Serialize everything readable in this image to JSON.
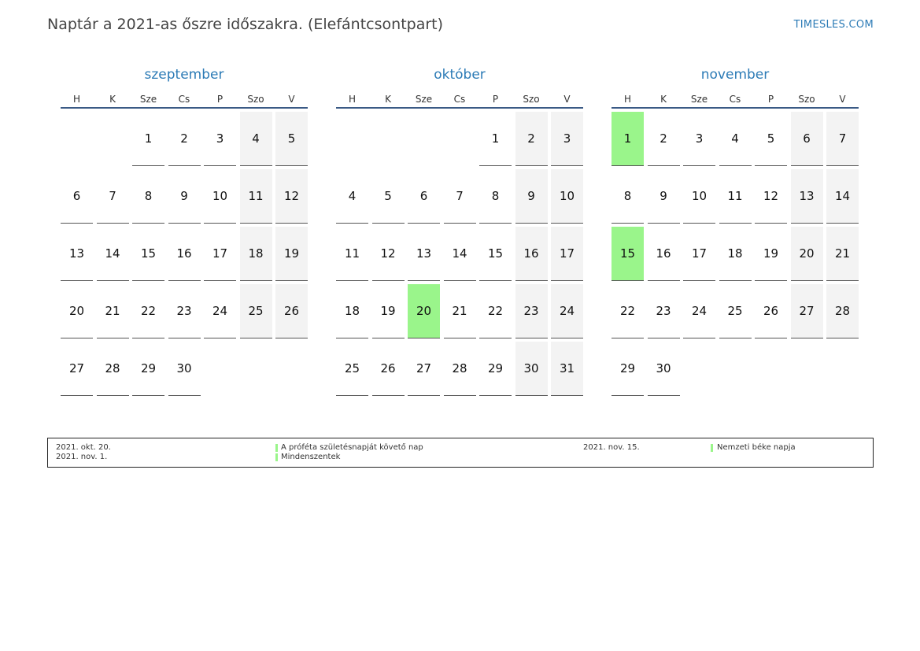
{
  "title": "Naptár a 2021-as őszre időszakra. (Elefántcsontpart)",
  "brand": "TIMESLES.COM",
  "weekday_headers": [
    "H",
    "K",
    "Sze",
    "Cs",
    "P",
    "Szo",
    "V"
  ],
  "colors": {
    "accent": "#2c7bb6",
    "holiday": "#9af58b",
    "weekend": "#f3f3f3"
  },
  "months": [
    {
      "name": "szeptember",
      "first_weekday": 3,
      "days": 30,
      "holidays": []
    },
    {
      "name": "október",
      "first_weekday": 5,
      "days": 31,
      "holidays": [
        20
      ]
    },
    {
      "name": "november",
      "first_weekday": 1,
      "days": 30,
      "holidays": [
        1,
        15
      ]
    }
  ],
  "legend": [
    {
      "date": "2021. okt. 20.",
      "name": "A próféta születésnapját követő nap"
    },
    {
      "date": "2021. nov. 1.",
      "name": "Mindenszentek"
    },
    {
      "date": "2021. nov. 15.",
      "name": "Nemzeti béke napja"
    }
  ]
}
